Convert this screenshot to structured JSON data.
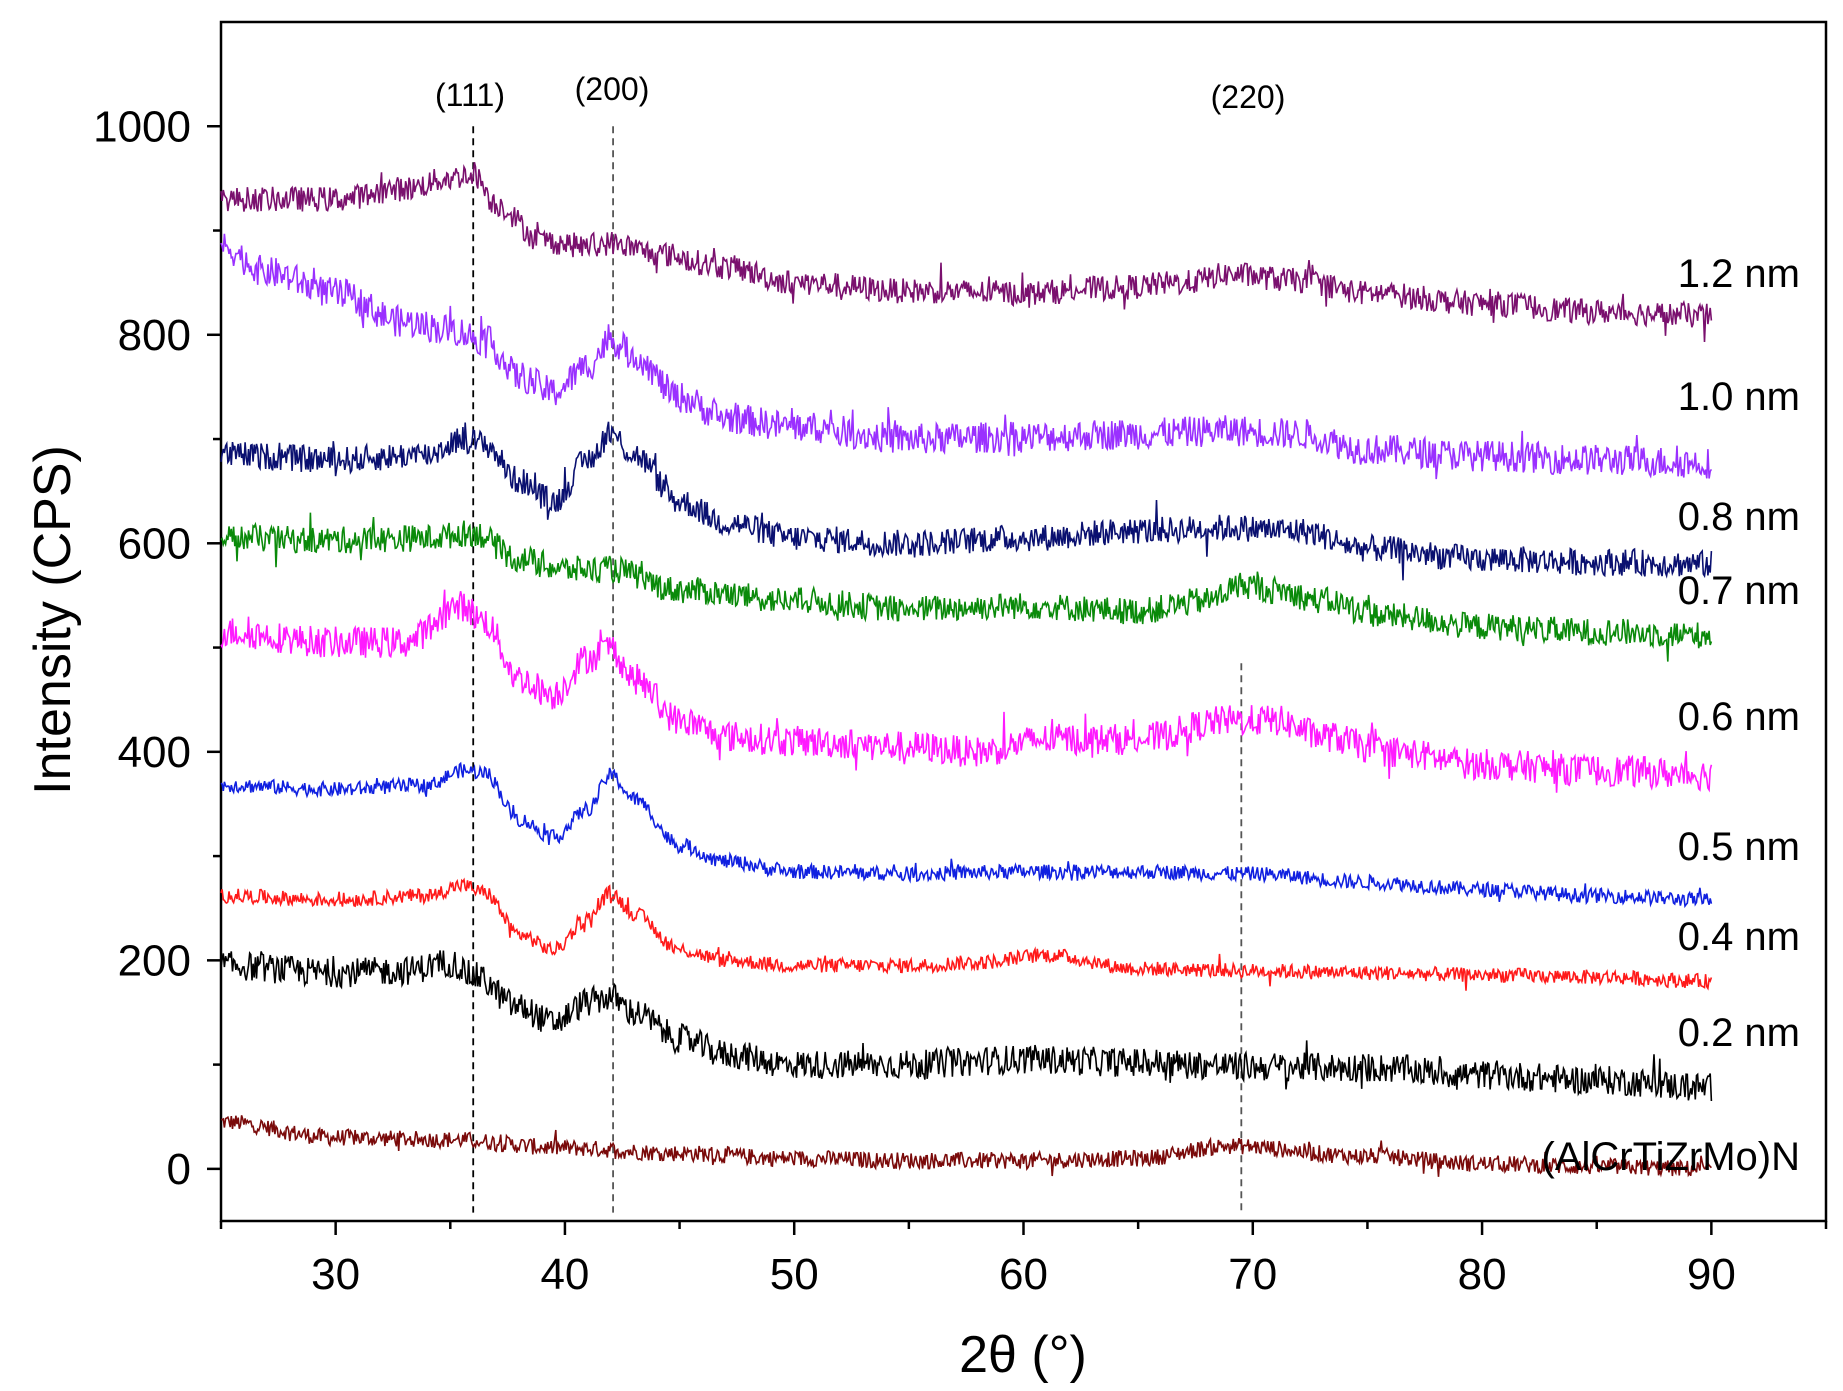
{
  "chart_data": {
    "type": "line",
    "title": "",
    "xlabel": "2θ (°)",
    "ylabel": "Intensity (CPS)",
    "xlim": [
      25,
      95
    ],
    "ylim": [
      -50,
      1100
    ],
    "x_ticks": [
      30,
      40,
      50,
      60,
      70,
      80,
      90
    ],
    "y_ticks": [
      0,
      200,
      400,
      600,
      800,
      1000
    ],
    "x_range_data": [
      25,
      90
    ],
    "peak_markers": [
      {
        "label": "(111)",
        "x": 36.0,
        "y_top": 1000
      },
      {
        "label": "(200)",
        "x": 42.1,
        "y_top": 1000
      },
      {
        "label": "(220)",
        "x": 69.5,
        "y_top": 485
      }
    ],
    "series": [
      {
        "name": "(AlCrTiZrMo)N",
        "color": "#7a0a0a",
        "noise": 8,
        "points": [
          [
            25,
            45
          ],
          [
            30,
            30
          ],
          [
            35,
            28
          ],
          [
            40,
            20
          ],
          [
            45,
            15
          ],
          [
            50,
            10
          ],
          [
            55,
            8
          ],
          [
            60,
            8
          ],
          [
            65,
            10
          ],
          [
            69,
            22
          ],
          [
            75,
            12
          ],
          [
            80,
            5
          ],
          [
            85,
            2
          ],
          [
            90,
            0
          ]
        ]
      },
      {
        "name": "0.2 nm",
        "color": "#000000",
        "noise": 14,
        "points": [
          [
            25,
            195
          ],
          [
            30,
            188
          ],
          [
            33,
            190
          ],
          [
            35,
            198
          ],
          [
            36,
            185
          ],
          [
            38,
            155
          ],
          [
            39.5,
            140
          ],
          [
            41,
            160
          ],
          [
            42,
            165
          ],
          [
            43,
            150
          ],
          [
            45,
            125
          ],
          [
            47,
            110
          ],
          [
            50,
            100
          ],
          [
            55,
            100
          ],
          [
            60,
            105
          ],
          [
            65,
            102
          ],
          [
            70,
            98
          ],
          [
            75,
            97
          ],
          [
            80,
            90
          ],
          [
            85,
            85
          ],
          [
            90,
            78
          ]
        ]
      },
      {
        "name": "0.4 nm",
        "color": "#ff1a1a",
        "noise": 7,
        "points": [
          [
            25,
            262
          ],
          [
            30,
            258
          ],
          [
            34,
            262
          ],
          [
            35.5,
            272
          ],
          [
            36.5,
            265
          ],
          [
            38,
            225
          ],
          [
            39.5,
            210
          ],
          [
            41,
            240
          ],
          [
            42,
            265
          ],
          [
            43,
            245
          ],
          [
            45,
            210
          ],
          [
            47,
            200
          ],
          [
            50,
            195
          ],
          [
            55,
            195
          ],
          [
            58,
            198
          ],
          [
            61,
            205
          ],
          [
            65,
            192
          ],
          [
            70,
            190
          ],
          [
            75,
            188
          ],
          [
            80,
            186
          ],
          [
            85,
            184
          ],
          [
            90,
            180
          ]
        ]
      },
      {
        "name": "0.5 nm",
        "color": "#1020e0",
        "noise": 7,
        "points": [
          [
            25,
            368
          ],
          [
            30,
            364
          ],
          [
            34,
            368
          ],
          [
            35.5,
            382
          ],
          [
            36.5,
            380
          ],
          [
            38,
            335
          ],
          [
            39.5,
            318
          ],
          [
            41,
            345
          ],
          [
            42,
            378
          ],
          [
            43,
            355
          ],
          [
            45,
            310
          ],
          [
            47,
            295
          ],
          [
            50,
            285
          ],
          [
            55,
            283
          ],
          [
            60,
            285
          ],
          [
            65,
            285
          ],
          [
            70,
            283
          ],
          [
            75,
            275
          ],
          [
            80,
            268
          ],
          [
            85,
            262
          ],
          [
            90,
            258
          ]
        ]
      },
      {
        "name": "0.6 nm",
        "color": "#ff1aff",
        "noise": 15,
        "points": [
          [
            25,
            515
          ],
          [
            30,
            505
          ],
          [
            33,
            505
          ],
          [
            35.5,
            540
          ],
          [
            36.5,
            525
          ],
          [
            38,
            470
          ],
          [
            39.5,
            455
          ],
          [
            41,
            490
          ],
          [
            42,
            500
          ],
          [
            43,
            470
          ],
          [
            45,
            430
          ],
          [
            47,
            415
          ],
          [
            50,
            410
          ],
          [
            55,
            405
          ],
          [
            58,
            400
          ],
          [
            61,
            412
          ],
          [
            65,
            412
          ],
          [
            69,
            430
          ],
          [
            71,
            430
          ],
          [
            73,
            415
          ],
          [
            76,
            400
          ],
          [
            80,
            388
          ],
          [
            85,
            382
          ],
          [
            90,
            378
          ]
        ]
      },
      {
        "name": "0.7 nm",
        "color": "#0a8a0a",
        "noise": 13,
        "points": [
          [
            25,
            605
          ],
          [
            30,
            603
          ],
          [
            34,
            605
          ],
          [
            36,
            610
          ],
          [
            38,
            585
          ],
          [
            40,
            575
          ],
          [
            42,
            575
          ],
          [
            45,
            555
          ],
          [
            50,
            545
          ],
          [
            55,
            537
          ],
          [
            60,
            540
          ],
          [
            65,
            535
          ],
          [
            68,
            545
          ],
          [
            69.5,
            560
          ],
          [
            71,
            555
          ],
          [
            73,
            545
          ],
          [
            76,
            530
          ],
          [
            80,
            520
          ],
          [
            85,
            515
          ],
          [
            90,
            512
          ]
        ]
      },
      {
        "name": "0.8 nm",
        "color": "#0a1070",
        "noise": 13,
        "points": [
          [
            25,
            685
          ],
          [
            30,
            680
          ],
          [
            34,
            685
          ],
          [
            35.5,
            700
          ],
          [
            36.5,
            695
          ],
          [
            38,
            660
          ],
          [
            39.5,
            640
          ],
          [
            41,
            680
          ],
          [
            42,
            705
          ],
          [
            43,
            685
          ],
          [
            45,
            640
          ],
          [
            47,
            620
          ],
          [
            50,
            605
          ],
          [
            55,
            600
          ],
          [
            60,
            605
          ],
          [
            65,
            612
          ],
          [
            69,
            615
          ],
          [
            72,
            612
          ],
          [
            75,
            595
          ],
          [
            80,
            585
          ],
          [
            85,
            582
          ],
          [
            90,
            580
          ]
        ]
      },
      {
        "name": "1.0 nm",
        "color": "#9a30ff",
        "noise": 15,
        "points": [
          [
            25,
            885
          ],
          [
            27,
            860
          ],
          [
            30,
            840
          ],
          [
            33,
            812
          ],
          [
            35,
            805
          ],
          [
            36.5,
            795
          ],
          [
            38,
            760
          ],
          [
            39.5,
            745
          ],
          [
            41,
            770
          ],
          [
            42,
            795
          ],
          [
            43,
            780
          ],
          [
            45,
            740
          ],
          [
            47,
            720
          ],
          [
            50,
            712
          ],
          [
            55,
            700
          ],
          [
            60,
            702
          ],
          [
            65,
            705
          ],
          [
            69,
            708
          ],
          [
            72,
            705
          ],
          [
            75,
            690
          ],
          [
            80,
            684
          ],
          [
            85,
            680
          ],
          [
            90,
            677
          ]
        ]
      },
      {
        "name": "1.2 nm",
        "color": "#7a106e",
        "noise": 12,
        "points": [
          [
            25,
            930
          ],
          [
            30,
            930
          ],
          [
            33,
            940
          ],
          [
            35,
            950
          ],
          [
            36,
            955
          ],
          [
            37,
            925
          ],
          [
            39,
            890
          ],
          [
            41,
            885
          ],
          [
            42,
            888
          ],
          [
            44,
            878
          ],
          [
            47,
            865
          ],
          [
            50,
            850
          ],
          [
            55,
            842
          ],
          [
            60,
            840
          ],
          [
            64,
            845
          ],
          [
            67,
            850
          ],
          [
            69,
            858
          ],
          [
            72,
            852
          ],
          [
            75,
            840
          ],
          [
            80,
            830
          ],
          [
            85,
            822
          ],
          [
            90,
            818
          ]
        ]
      }
    ]
  }
}
